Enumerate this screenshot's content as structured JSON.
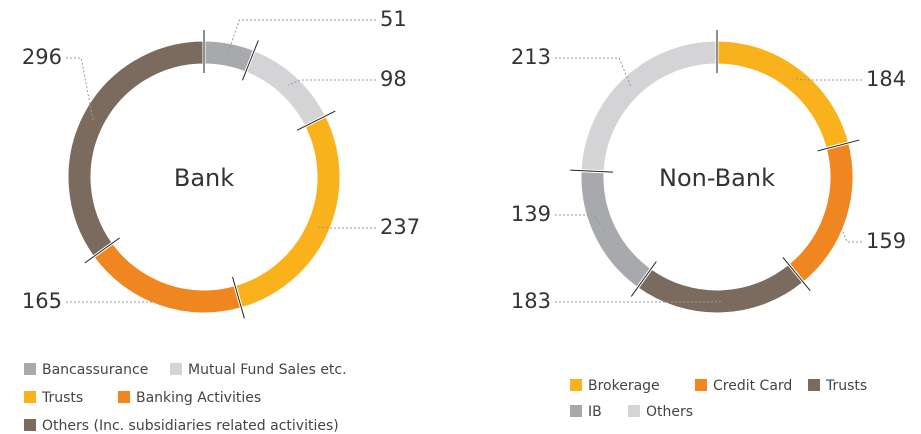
{
  "chart_data": [
    {
      "type": "pie",
      "donut": true,
      "title": "Bank",
      "categories": [
        "Bancassurance",
        "Mutual Fund Sales etc.",
        "Trusts",
        "Banking Activities",
        "Others (Inc. subsidiaries related activities)"
      ],
      "values": [
        51,
        98,
        237,
        165,
        296
      ],
      "colors": [
        "#a7a9ac",
        "#d4d4d6",
        "#f9b21c",
        "#f0861f",
        "#7a6b5e"
      ]
    },
    {
      "type": "pie",
      "donut": true,
      "title": "Non-Bank",
      "categories": [
        "Brokerage",
        "Credit Card",
        "Trusts",
        "IB",
        "Others"
      ],
      "values": [
        184,
        159,
        183,
        139,
        213
      ],
      "colors": [
        "#f9b21c",
        "#f0861f",
        "#7a6b5e",
        "#a7a9ac",
        "#d4d4d6"
      ]
    }
  ]
}
